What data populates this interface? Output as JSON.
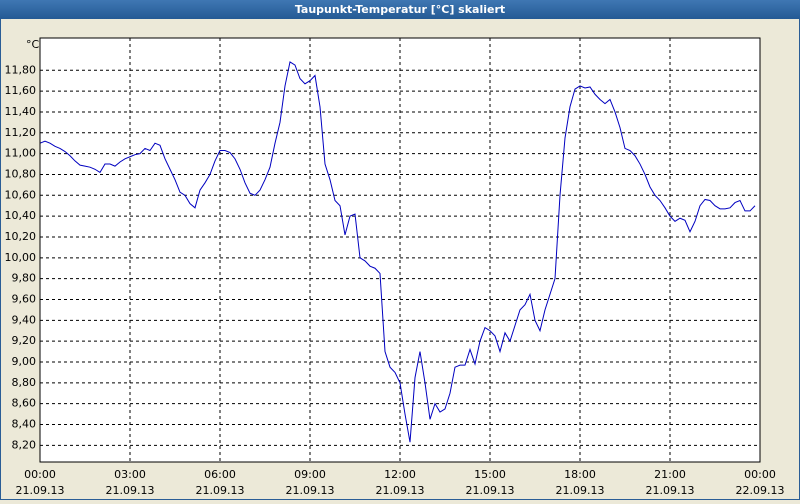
{
  "chart_data": {
    "type": "line",
    "title": "Taupunkt-Temperatur [°C] skaliert",
    "y_unit": "°C",
    "x": [
      0,
      10,
      20,
      30,
      40,
      50,
      60,
      70,
      80,
      90,
      100,
      110,
      120,
      130,
      140,
      150,
      160,
      170,
      180,
      190,
      200,
      210,
      220,
      230,
      240,
      250,
      260,
      270,
      280,
      290,
      300,
      310,
      320,
      330,
      340,
      350,
      360,
      370,
      380,
      390,
      400,
      410,
      420,
      430,
      440,
      450,
      460,
      470,
      480,
      490,
      500,
      510,
      520,
      530,
      540,
      550,
      560,
      570,
      580,
      590,
      600,
      610,
      620,
      630,
      640,
      650,
      660,
      670,
      680,
      690,
      700,
      710,
      720,
      730,
      740,
      750,
      760,
      770,
      780,
      790,
      800,
      810,
      820,
      830,
      840,
      850,
      860,
      870,
      880,
      890,
      900,
      910,
      920,
      930,
      940,
      950,
      960,
      970,
      980,
      990,
      1000,
      1010,
      1020,
      1030,
      1040,
      1050,
      1060,
      1070,
      1080,
      1090,
      1100,
      1110,
      1120,
      1130,
      1140,
      1150,
      1160,
      1170,
      1180,
      1190,
      1200,
      1210,
      1220,
      1230,
      1240,
      1250,
      1260,
      1270,
      1280,
      1290,
      1300,
      1310,
      1320,
      1330,
      1340,
      1350,
      1360,
      1370,
      1380,
      1390,
      1400,
      1410,
      1420,
      1430
    ],
    "series": [
      {
        "color": "#0000c0",
        "values": [
          11.1,
          11.12,
          11.1,
          11.07,
          11.05,
          11.02,
          10.98,
          10.93,
          10.89,
          10.88,
          10.87,
          10.85,
          10.82,
          10.9,
          10.9,
          10.88,
          10.92,
          10.95,
          10.97,
          10.99,
          11.0,
          11.05,
          11.03,
          11.1,
          11.08,
          10.95,
          10.85,
          10.75,
          10.63,
          10.6,
          10.52,
          10.48,
          10.65,
          10.72,
          10.8,
          10.93,
          11.03,
          11.03,
          11.01,
          10.95,
          10.85,
          10.72,
          10.62,
          10.6,
          10.65,
          10.75,
          10.87,
          11.1,
          11.3,
          11.65,
          11.88,
          11.85,
          11.72,
          11.67,
          11.7,
          11.75,
          11.45,
          10.9,
          10.75,
          10.55,
          10.5,
          10.22,
          10.4,
          10.42,
          10.0,
          9.97,
          9.92,
          9.9,
          9.85,
          9.1,
          8.95,
          8.9,
          8.8,
          8.5,
          8.23,
          8.85,
          9.1,
          8.8,
          8.45,
          8.6,
          8.52,
          8.55,
          8.7,
          8.95,
          8.97,
          8.97,
          9.12,
          8.98,
          9.2,
          9.33,
          9.3,
          9.25,
          9.1,
          9.28,
          9.2,
          9.35,
          9.5,
          9.55,
          9.65,
          9.4,
          9.3,
          9.5,
          9.65,
          9.8,
          10.6,
          11.15,
          11.45,
          11.62,
          11.65,
          11.63,
          11.64,
          11.57,
          11.52,
          11.48,
          11.52,
          11.4,
          11.25,
          11.05,
          11.03,
          10.98,
          10.9,
          10.8,
          10.68,
          10.6,
          10.55,
          10.48,
          10.4,
          10.35,
          10.38,
          10.36,
          10.25,
          10.35,
          10.5,
          10.56,
          10.55,
          10.5,
          10.47,
          10.47,
          10.48,
          10.53,
          10.55,
          10.45,
          10.45,
          10.5
        ]
      }
    ],
    "xlim": [
      0,
      1440
    ],
    "xticks": [
      {
        "value": 0,
        "label": "00:00"
      },
      {
        "value": 180,
        "label": "03:00"
      },
      {
        "value": 360,
        "label": "06:00"
      },
      {
        "value": 540,
        "label": "09:00"
      },
      {
        "value": 720,
        "label": "12:00"
      },
      {
        "value": 900,
        "label": "15:00"
      },
      {
        "value": 1080,
        "label": "18:00"
      },
      {
        "value": 1260,
        "label": "21:00"
      },
      {
        "value": 1440,
        "label": "00:00"
      }
    ],
    "x_dates": [
      "21.09.13",
      "21.09.13",
      "21.09.13",
      "21.09.13",
      "21.09.13",
      "21.09.13",
      "21.09.13",
      "21.09.13",
      "22.09.13"
    ],
    "ylim": [
      8.04,
      12.11
    ],
    "yticks": [
      {
        "value": 8.2,
        "label": "8,20"
      },
      {
        "value": 8.4,
        "label": "8,40"
      },
      {
        "value": 8.6,
        "label": "8,60"
      },
      {
        "value": 8.8,
        "label": "8,80"
      },
      {
        "value": 9.0,
        "label": "9,00"
      },
      {
        "value": 9.2,
        "label": "9,20"
      },
      {
        "value": 9.4,
        "label": "9,40"
      },
      {
        "value": 9.6,
        "label": "9,60"
      },
      {
        "value": 9.8,
        "label": "9,80"
      },
      {
        "value": 10.0,
        "label": "10,00"
      },
      {
        "value": 10.2,
        "label": "10,20"
      },
      {
        "value": 10.4,
        "label": "10,40"
      },
      {
        "value": 10.6,
        "label": "10,60"
      },
      {
        "value": 10.8,
        "label": "10,80"
      },
      {
        "value": 11.0,
        "label": "11,00"
      },
      {
        "value": 11.2,
        "label": "11,20"
      },
      {
        "value": 11.4,
        "label": "11,40"
      },
      {
        "value": 11.6,
        "label": "11,60"
      },
      {
        "value": 11.8,
        "label": "11,80"
      }
    ],
    "grid": true
  }
}
